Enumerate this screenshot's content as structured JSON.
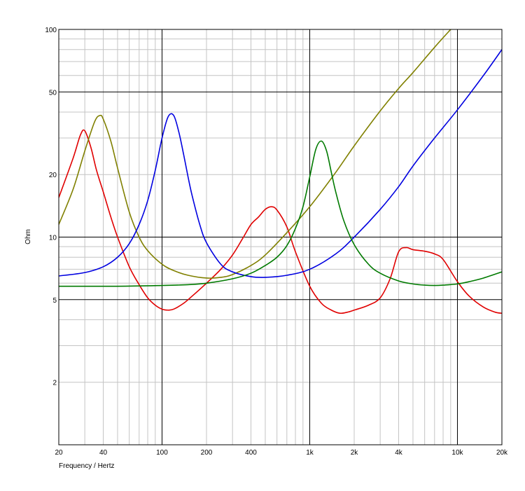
{
  "chart_data": {
    "type": "line",
    "title": "",
    "xlabel": "Frequency / Hertz",
    "ylabel": "Ohm",
    "xscale": "log",
    "yscale": "log",
    "xlim": [
      20,
      20000
    ],
    "ylim": [
      1,
      100
    ],
    "grid": true,
    "legend": "none",
    "x_ticks": [
      {
        "value": 20,
        "label": "20"
      },
      {
        "value": 40,
        "label": "40"
      },
      {
        "value": 100,
        "label": "100"
      },
      {
        "value": 200,
        "label": "200"
      },
      {
        "value": 400,
        "label": "400"
      },
      {
        "value": 1000,
        "label": "1k"
      },
      {
        "value": 2000,
        "label": "2k"
      },
      {
        "value": 4000,
        "label": "4k"
      },
      {
        "value": 10000,
        "label": "10k"
      },
      {
        "value": 20000,
        "label": "20k"
      }
    ],
    "y_ticks": [
      {
        "value": 2,
        "label": "2"
      },
      {
        "value": 5,
        "label": "5"
      },
      {
        "value": 10,
        "label": "10"
      },
      {
        "value": 20,
        "label": "20"
      },
      {
        "value": 50,
        "label": "50"
      },
      {
        "value": 100,
        "label": "100"
      }
    ],
    "series": [
      {
        "color": "#e00000",
        "x": [
          20,
          25,
          28,
          30,
          33,
          36,
          40,
          45,
          50,
          60,
          70,
          80,
          90,
          100,
          110,
          120,
          140,
          160,
          200,
          250,
          300,
          350,
          400,
          450,
          500,
          550,
          600,
          700,
          800,
          1000,
          1200,
          1400,
          1600,
          1800,
          2000,
          2500,
          3000,
          3500,
          4000,
          4500,
          5000,
          6000,
          7000,
          8000,
          10000,
          12000,
          15000,
          18000,
          20000
        ],
        "y": [
          15.5,
          24,
          31,
          32.5,
          27,
          21,
          16.5,
          12.5,
          10,
          7.2,
          5.9,
          5.1,
          4.7,
          4.5,
          4.45,
          4.5,
          4.8,
          5.2,
          6.0,
          7.0,
          8.2,
          9.8,
          11.5,
          12.5,
          13.6,
          14.0,
          13.5,
          11.2,
          8.5,
          5.8,
          4.8,
          4.45,
          4.3,
          4.35,
          4.45,
          4.7,
          5.1,
          6.3,
          8.5,
          8.9,
          8.7,
          8.55,
          8.3,
          7.8,
          6.1,
          5.2,
          4.6,
          4.35,
          4.3
        ]
      },
      {
        "color": "#808000",
        "x": [
          20,
          25,
          30,
          35,
          38,
          40,
          45,
          50,
          60,
          70,
          80,
          100,
          120,
          150,
          200,
          250,
          300,
          400,
          500,
          700,
          1000,
          1500,
          2000,
          3000,
          4000,
          5000,
          7000,
          9000
        ],
        "y": [
          11.5,
          17,
          26,
          36,
          38.5,
          37,
          29,
          21.5,
          13.2,
          10.0,
          8.6,
          7.4,
          6.9,
          6.55,
          6.35,
          6.4,
          6.6,
          7.3,
          8.2,
          10.5,
          14.0,
          20.5,
          27.5,
          40.5,
          52,
          62,
          82,
          100
        ]
      },
      {
        "color": "#0000e0",
        "x": [
          20,
          30,
          40,
          50,
          60,
          70,
          80,
          90,
          100,
          110,
          120,
          130,
          140,
          150,
          160,
          180,
          200,
          250,
          300,
          400,
          500,
          700,
          1000,
          1500,
          2000,
          3000,
          4000,
          5000,
          7000,
          10000,
          15000,
          20000
        ],
        "y": [
          6.5,
          6.75,
          7.2,
          8.0,
          9.3,
          11.5,
          15.0,
          21.0,
          30.0,
          38.0,
          38.5,
          32.0,
          25.0,
          19.5,
          15.8,
          11.5,
          9.4,
          7.4,
          6.8,
          6.45,
          6.4,
          6.55,
          7.0,
          8.3,
          10.0,
          13.6,
          17.5,
          22.0,
          30.0,
          41.0,
          60.0,
          80.0
        ]
      },
      {
        "color": "#007a00",
        "x": [
          20,
          50,
          100,
          150,
          200,
          300,
          400,
          500,
          600,
          700,
          800,
          900,
          1000,
          1100,
          1200,
          1300,
          1400,
          1500,
          1700,
          2000,
          2500,
          3000,
          4000,
          5000,
          6000,
          7000,
          8000,
          10000,
          12000,
          15000,
          20000
        ],
        "y": [
          5.8,
          5.8,
          5.85,
          5.9,
          6.0,
          6.3,
          6.7,
          7.3,
          8.0,
          9.1,
          11.0,
          14.0,
          19.5,
          26.5,
          29.0,
          26.0,
          20.5,
          16.5,
          12.0,
          9.2,
          7.4,
          6.7,
          6.15,
          5.95,
          5.87,
          5.85,
          5.87,
          5.95,
          6.1,
          6.35,
          6.8
        ]
      }
    ]
  }
}
